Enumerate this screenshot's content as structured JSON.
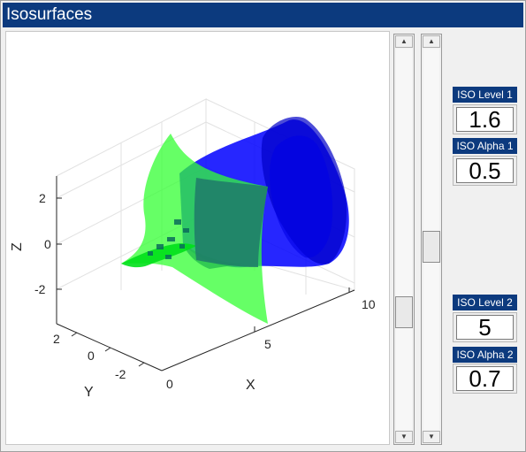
{
  "window": {
    "title": "Isosurfaces"
  },
  "plot": {
    "x_label": "X",
    "y_label": "Y",
    "z_label": "Z",
    "x_ticks": [
      "0",
      "5",
      "10"
    ],
    "y_ticks": [
      "2",
      "0",
      "-2"
    ],
    "z_ticks": [
      "2",
      "0",
      "-2"
    ],
    "surfaces": [
      {
        "name": "isosurface-1",
        "color": "#0000ff"
      },
      {
        "name": "isosurface-2",
        "color": "#00ff33"
      }
    ]
  },
  "sliders": {
    "level_1": {
      "value_fraction": 0.35
    },
    "level_2": {
      "value_fraction": 0.75
    }
  },
  "controls": {
    "iso_level_1": {
      "label": "ISO Level 1",
      "value": "1.6"
    },
    "iso_alpha_1": {
      "label": "ISO Alpha 1",
      "value": "0.5"
    },
    "iso_level_2": {
      "label": "ISO Level 2",
      "value": "5"
    },
    "iso_alpha_2": {
      "label": "ISO Alpha 2",
      "value": "0.7"
    }
  }
}
